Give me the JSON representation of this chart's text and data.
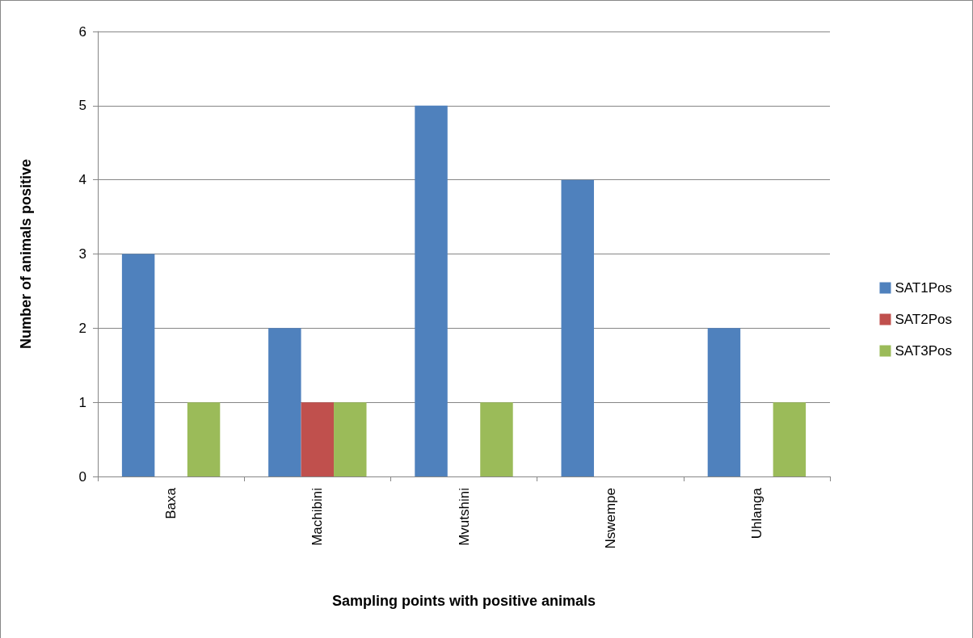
{
  "chart_data": {
    "type": "bar",
    "xlabel": "Sampling points with positive animals",
    "ylabel": "Number of animals positive",
    "categories": [
      "Baxa",
      "Machibini",
      "Mvutshini",
      "Nswempe",
      "Uhlanga"
    ],
    "series": [
      {
        "name": "SAT1Pos",
        "color": "#4f81bd",
        "values": [
          3,
          2,
          5,
          4,
          2
        ]
      },
      {
        "name": "SAT2Pos",
        "color": "#c0504d",
        "values": [
          0,
          1,
          0,
          0,
          0
        ]
      },
      {
        "name": "SAT3Pos",
        "color": "#9bbb59",
        "values": [
          1,
          1,
          1,
          0,
          1
        ]
      }
    ],
    "ylim": [
      0,
      6
    ],
    "yticks": [
      0,
      1,
      2,
      3,
      4,
      5,
      6
    ],
    "grid": "y",
    "legend": "right"
  }
}
